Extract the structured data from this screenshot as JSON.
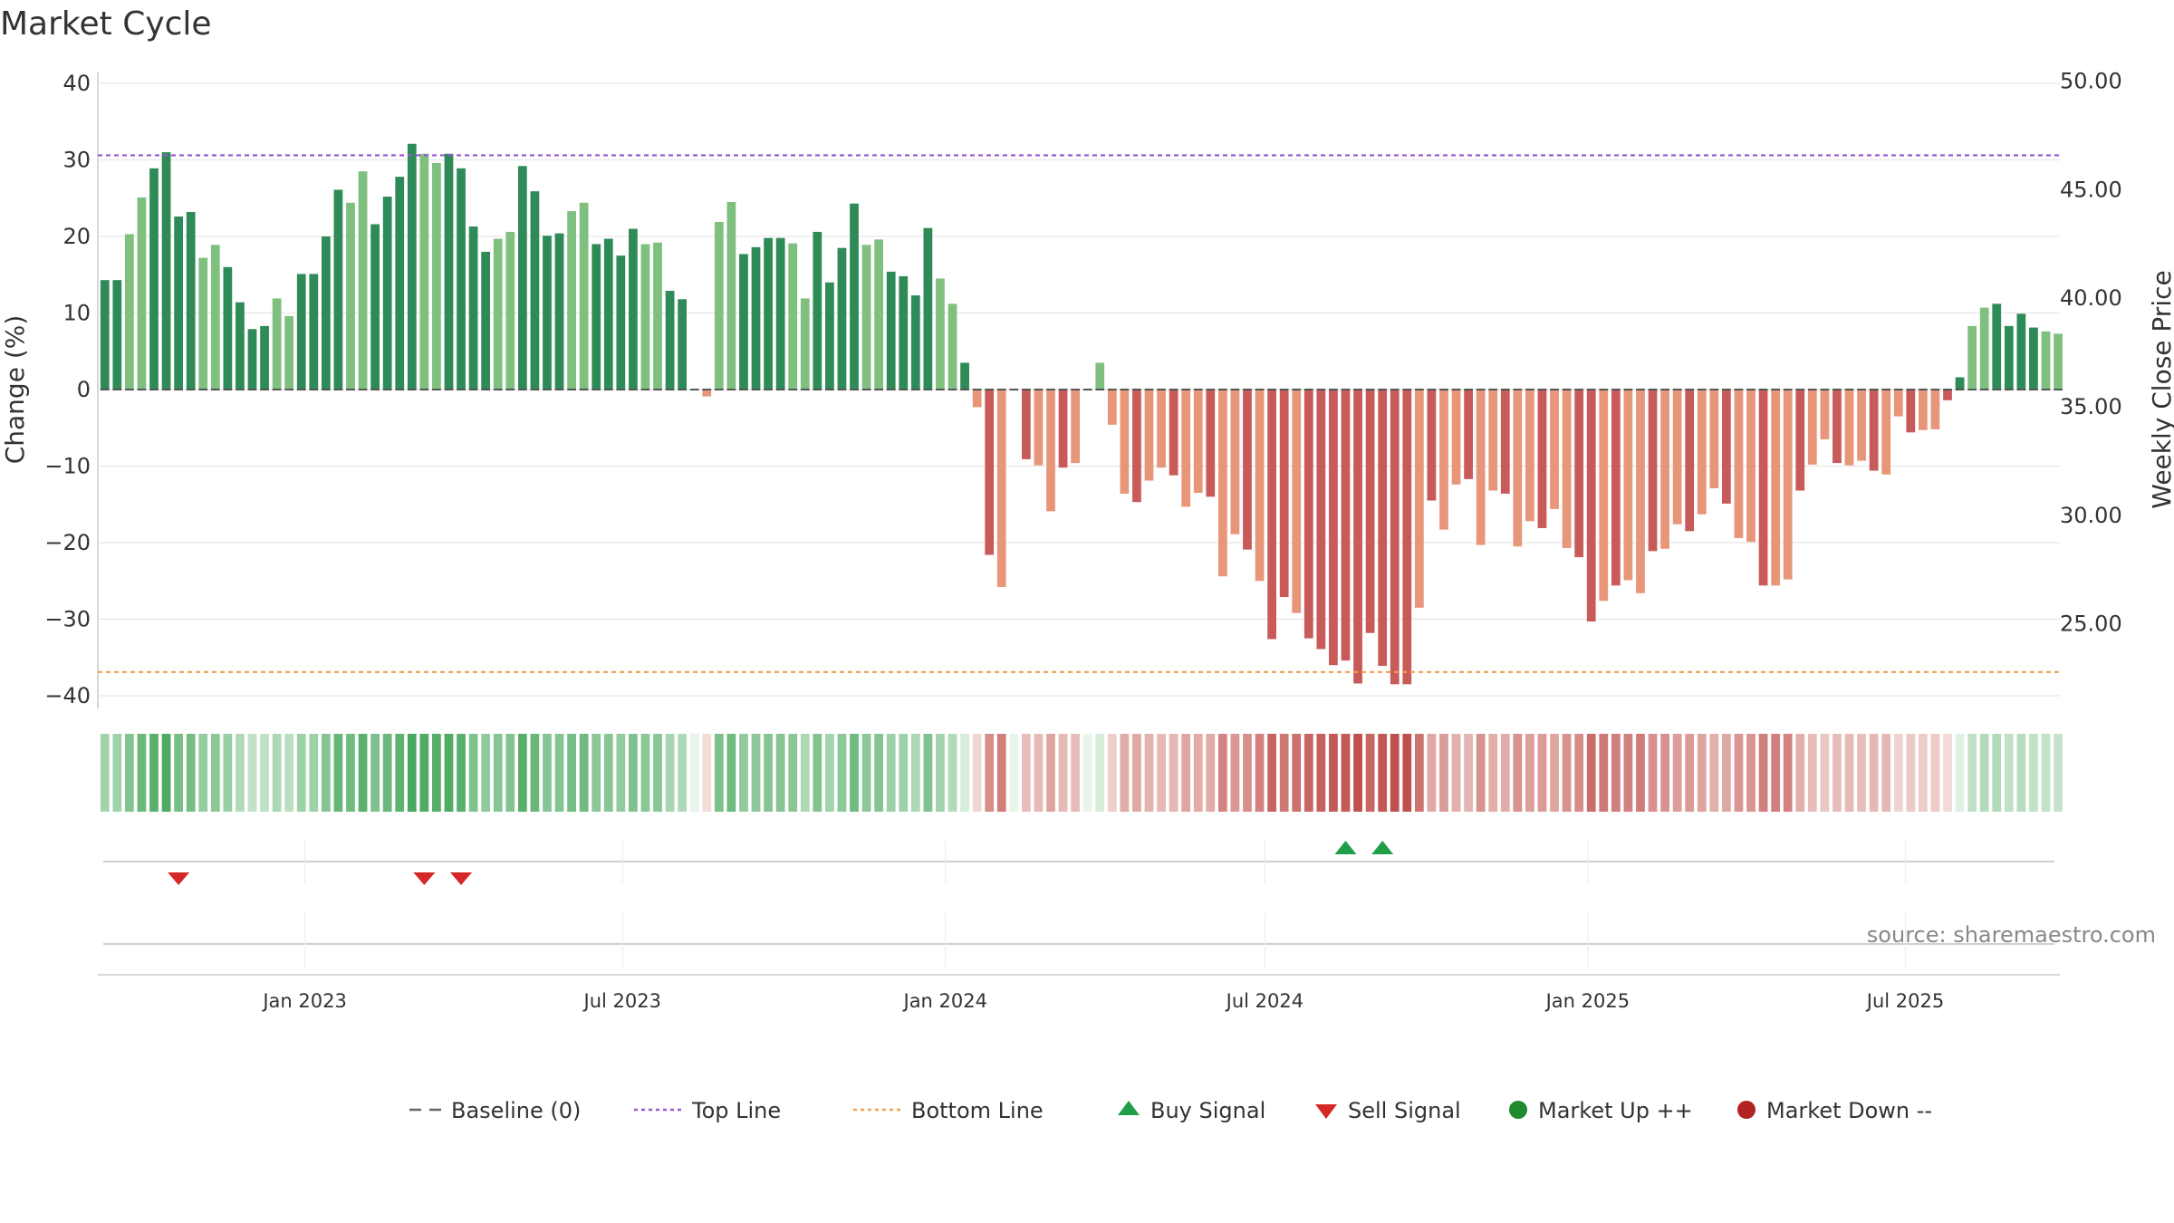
{
  "chart_data": {
    "type": "bar",
    "title": "Market Cycle",
    "ylabel": "Change (%)",
    "y2label": "Weekly Close Price",
    "ylim": [
      -42,
      41
    ],
    "y2lim": [
      21.1,
      50.4
    ],
    "yticks": [
      40,
      30,
      20,
      10,
      0,
      -10,
      -20,
      -30,
      -40
    ],
    "y2ticks": [
      "50.00",
      "45.00",
      "40.00",
      "35.00",
      "30.00",
      "25.00"
    ],
    "x_range": [
      "2022-09-05",
      "2025-09-27"
    ],
    "x_start": "2022-09-09",
    "x_step_weeks": 1,
    "xticks": [
      {
        "date": "2023-01-01",
        "label": "Jan 2023"
      },
      {
        "date": "2023-07-01",
        "label": "Jul 2023"
      },
      {
        "date": "2024-01-01",
        "label": "Jan 2024"
      },
      {
        "date": "2024-07-01",
        "label": "Jul 2024"
      },
      {
        "date": "2025-01-01",
        "label": "Jan 2025"
      },
      {
        "date": "2025-07-01",
        "label": "Jul 2025"
      }
    ],
    "top_line": 30.6,
    "bottom_line": -36.9,
    "baseline": 0,
    "values": [
      14.3,
      14.3,
      20.3,
      25.1,
      28.9,
      31.0,
      22.6,
      23.2,
      17.2,
      18.9,
      16.0,
      11.4,
      7.9,
      8.3,
      11.9,
      9.6,
      15.1,
      15.1,
      20.0,
      26.1,
      24.4,
      28.5,
      21.6,
      25.2,
      27.8,
      32.1,
      30.8,
      29.6,
      30.8,
      28.9,
      21.3,
      18.0,
      19.7,
      20.6,
      29.2,
      25.9,
      20.1,
      20.4,
      23.3,
      24.4,
      19.0,
      19.7,
      17.5,
      21.0,
      19.0,
      19.2,
      12.9,
      11.8,
      0.0,
      -0.9,
      21.9,
      24.5,
      17.7,
      18.6,
      19.8,
      19.8,
      19.1,
      11.9,
      20.6,
      14.0,
      18.5,
      24.3,
      18.9,
      19.6,
      15.4,
      14.8,
      12.3,
      21.1,
      14.5,
      11.2,
      3.5,
      -2.3,
      -21.6,
      -25.8,
      0.0,
      -9.1,
      -9.9,
      -15.9,
      -10.2,
      -9.6,
      0.0,
      3.5,
      -4.6,
      -13.6,
      -14.7,
      -11.9,
      -10.2,
      -11.2,
      -15.3,
      -13.5,
      -14.0,
      -24.4,
      -18.9,
      -20.9,
      -25.0,
      -32.6,
      -27.1,
      -29.2,
      -32.5,
      -33.9,
      -36.0,
      -35.4,
      -38.4,
      -31.8,
      -36.1,
      -38.5,
      -38.5,
      -28.5,
      -14.5,
      -18.3,
      -12.4,
      -11.7,
      -20.3,
      -13.2,
      -13.6,
      -20.5,
      -17.2,
      -18.1,
      -15.6,
      -20.7,
      -21.9,
      -30.3,
      -27.6,
      -25.6,
      -24.9,
      -26.6,
      -21.1,
      -20.8,
      -17.6,
      -18.5,
      -16.3,
      -12.9,
      -14.9,
      -19.4,
      -19.9,
      -25.6,
      -25.6,
      -24.8,
      -13.2,
      -9.8,
      -6.5,
      -9.6,
      -9.9,
      -9.3,
      -10.6,
      -11.1,
      -3.5,
      -5.6,
      -5.3,
      -5.2,
      -1.4,
      1.6,
      8.3,
      10.7,
      11.2,
      8.3,
      9.9,
      8.1,
      7.6,
      7.3
    ],
    "legend": [
      {
        "label": "Baseline (0)",
        "kind": "dash",
        "color": "#666666"
      },
      {
        "label": "Top Line",
        "kind": "dot",
        "color": "#9a55d6"
      },
      {
        "label": "Bottom Line",
        "kind": "dot",
        "color": "#f0a050"
      },
      {
        "label": "Buy Signal",
        "kind": "tri-up",
        "color": "#1f9e4a"
      },
      {
        "label": "Sell Signal",
        "kind": "tri-down",
        "color": "#d62728"
      },
      {
        "label": "Market Up ++",
        "kind": "circle",
        "color": "#1f8a2e"
      },
      {
        "label": "Market Down --",
        "kind": "circle",
        "color": "#b22222"
      }
    ],
    "buy_signals": [
      "2024-08-16",
      "2024-09-06"
    ],
    "sell_signals": [
      "2022-10-21",
      "2023-03-10",
      "2023-03-31"
    ],
    "colors": {
      "up_strong": "#2e8b57",
      "up_weak": "#7fc07f",
      "down_strong": "#c85a5a",
      "down_weak": "#e8967a",
      "top_line": "#9a55d6",
      "bottom_line": "#f0a050",
      "buy": "#1f9e4a",
      "sell": "#d62728"
    }
  },
  "source": "source: sharemaestro.com"
}
